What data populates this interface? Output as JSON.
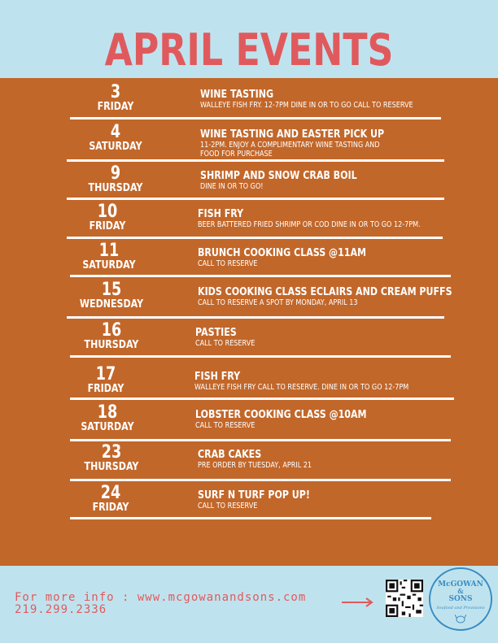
{
  "title": "APRIL EVENTS",
  "events": [
    {
      "num": "3",
      "day": "FRIDAY",
      "title": "WINE TASTING",
      "desc": "WALLEYE FISH FRY. 12-7PM DINE IN OR TO GO CALL TO RESERVE"
    },
    {
      "num": "4",
      "day": "SATURDAY",
      "title": "WINE TASTING AND EASTER PICK UP",
      "desc": "11-2PM. ENJOY A COMPLIMENTARY WINE TASTING AND\nFOOD FOR PURCHASE"
    },
    {
      "num": "9",
      "day": "THURSDAY",
      "title": "SHRIMP AND SNOW CRAB BOIL",
      "desc": "DINE IN OR TO GO!"
    },
    {
      "num": "10",
      "day": "FRIDAY",
      "title": "FISH FRY",
      "desc": "BEER BATTERED FRIED SHRIMP OR COD  DINE IN OR TO GO 12-7PM."
    },
    {
      "num": "11",
      "day": "SATURDAY",
      "title": "BRUNCH COOKING CLASS @11AM",
      "desc": "CALL TO RESERVE"
    },
    {
      "num": "15",
      "day": "WEDNESDAY",
      "title": "KIDS COOKING CLASS ECLAIRS AND CREAM PUFFS",
      "desc": "CALL TO RESERVE A SPOT BY MONDAY, APRIL 13"
    },
    {
      "num": "16",
      "day": "THURSDAY",
      "title": "PASTIES",
      "desc": "CALL TO RESERVE"
    },
    {
      "num": "17",
      "day": "FRIDAY",
      "title": "FISH FRY",
      "desc": "WALLEYE FISH FRY CALL TO RESERVE. DINE IN OR TO GO 12-7PM"
    },
    {
      "num": "18",
      "day": "SATURDAY",
      "title": "LOBSTER COOKING CLASS @10AM",
      "desc": "CALL TO RESERVE"
    },
    {
      "num": "23",
      "day": "THURSDAY",
      "title": "CRAB CAKES",
      "desc": "PRE ORDER BY TUESDAY, APRIL 21"
    },
    {
      "num": "24",
      "day": "FRIDAY",
      "title": "SURF N TURF POP UP!",
      "desc": "CALL TO RESERVE"
    }
  ],
  "footer": {
    "info": "For more info : www.mcgowanandsons.com",
    "phone": "219.299.2336"
  },
  "logo": {
    "line1": "McGOWAN",
    "amp": "&",
    "line2": "SONS",
    "tagline": "Seafood and Provisions"
  },
  "colors": {
    "background": "#bfe3ee",
    "panel": "#c2672a",
    "accent": "#e05a5d",
    "logo": "#3a8cc2"
  }
}
